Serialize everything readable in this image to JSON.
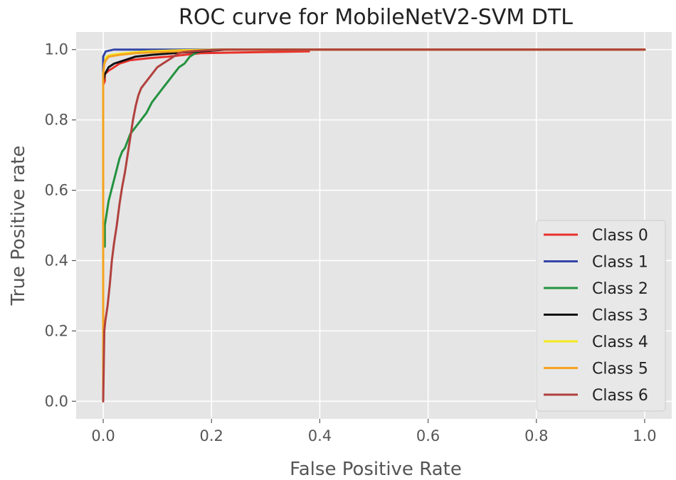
{
  "chart_data": {
    "type": "line",
    "title": "ROC curve for MobileNetV2-SVM DTL",
    "xlabel": "False Positive Rate",
    "ylabel": "True Positive rate",
    "xlim": [
      -0.05,
      1.05
    ],
    "ylim": [
      -0.05,
      1.05
    ],
    "grid": true,
    "legend_position": "lower-right",
    "xticks": [
      0.0,
      0.2,
      0.4,
      0.6,
      0.8,
      1.0
    ],
    "xtick_labels": [
      "0.0",
      "0.2",
      "0.4",
      "0.6",
      "0.8",
      "1.0"
    ],
    "yticks": [
      0.0,
      0.2,
      0.4,
      0.6,
      0.8,
      1.0
    ],
    "ytick_labels": [
      "0.0",
      "0.2",
      "0.4",
      "0.6",
      "0.8",
      "1.0"
    ],
    "series": [
      {
        "name": "Class 0",
        "color": "#e8312a",
        "x": [
          0,
          0,
          0.003,
          0.003,
          0.01,
          0.02,
          0.03,
          0.05,
          0.08,
          0.12,
          0.18,
          0.38,
          0.38,
          1.0
        ],
        "y": [
          0,
          0.9,
          0.91,
          0.93,
          0.94,
          0.95,
          0.96,
          0.97,
          0.975,
          0.98,
          0.99,
          0.995,
          1.0,
          1.0
        ]
      },
      {
        "name": "Class 1",
        "color": "#3446a8",
        "x": [
          0,
          0,
          0.003,
          0.005,
          0.02,
          1.0
        ],
        "y": [
          0,
          0.98,
          0.99,
          0.995,
          1.0,
          1.0
        ]
      },
      {
        "name": "Class 2",
        "color": "#23923f",
        "x": [
          0.003,
          0.003,
          0.006,
          0.01,
          0.015,
          0.02,
          0.025,
          0.03,
          0.035,
          0.04,
          0.045,
          0.05,
          0.055,
          0.06,
          0.065,
          0.07,
          0.08,
          0.09,
          0.1,
          0.11,
          0.12,
          0.13,
          0.14,
          0.15,
          0.16,
          0.17,
          0.18,
          0.2,
          1.0
        ],
        "y": [
          0.44,
          0.5,
          0.53,
          0.57,
          0.6,
          0.63,
          0.66,
          0.69,
          0.71,
          0.72,
          0.74,
          0.76,
          0.77,
          0.78,
          0.79,
          0.8,
          0.82,
          0.85,
          0.87,
          0.89,
          0.91,
          0.93,
          0.95,
          0.96,
          0.98,
          0.99,
          0.995,
          1.0,
          1.0
        ]
      },
      {
        "name": "Class 3",
        "color": "#111111",
        "x": [
          0,
          0,
          0.003,
          0.01,
          0.02,
          0.04,
          0.06,
          0.09,
          0.13,
          0.18,
          0.23,
          1.0
        ],
        "y": [
          0,
          0.91,
          0.93,
          0.95,
          0.96,
          0.97,
          0.98,
          0.985,
          0.99,
          0.995,
          1.0,
          1.0
        ]
      },
      {
        "name": "Class 4",
        "color": "#f5e81c",
        "x": [
          0,
          0,
          0.002,
          0.006,
          0.015,
          0.04,
          0.08,
          0.14,
          0.22,
          1.0
        ],
        "y": [
          0,
          0.93,
          0.96,
          0.98,
          0.985,
          0.99,
          0.995,
          0.998,
          1.0,
          1.0
        ]
      },
      {
        "name": "Class 5",
        "color": "#f5a320",
        "x": [
          0,
          0,
          0.002,
          0.005,
          0.01,
          0.03,
          0.06,
          0.1,
          0.15,
          0.22,
          1.0
        ],
        "y": [
          0,
          0.93,
          0.96,
          0.97,
          0.98,
          0.985,
          0.99,
          0.993,
          0.996,
          1.0,
          1.0
        ]
      },
      {
        "name": "Class 6",
        "color": "#b0413e",
        "x": [
          0,
          0.002,
          0.004,
          0.008,
          0.012,
          0.016,
          0.02,
          0.025,
          0.03,
          0.035,
          0.04,
          0.045,
          0.05,
          0.055,
          0.06,
          0.065,
          0.07,
          0.08,
          0.09,
          0.1,
          0.11,
          0.12,
          0.13,
          0.14,
          0.15,
          0.17,
          0.19,
          0.22,
          1.0
        ],
        "y": [
          0,
          0.2,
          0.23,
          0.27,
          0.33,
          0.4,
          0.45,
          0.5,
          0.56,
          0.61,
          0.65,
          0.7,
          0.75,
          0.8,
          0.84,
          0.87,
          0.89,
          0.91,
          0.93,
          0.95,
          0.96,
          0.97,
          0.98,
          0.99,
          0.993,
          0.996,
          0.998,
          1.0,
          1.0
        ]
      }
    ]
  }
}
